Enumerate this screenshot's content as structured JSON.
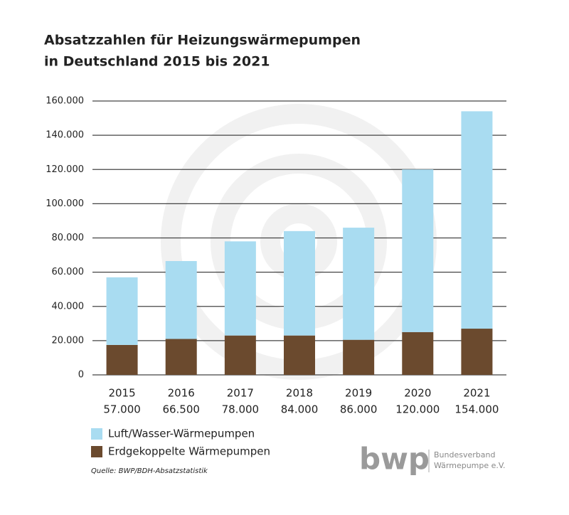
{
  "chart_data": {
    "type": "stacked_bar",
    "title": [
      "Absatzzahlen für Heizungswärmepumpen",
      "in Deutschland 2015 bis 2021"
    ],
    "categories": [
      "2015",
      "2016",
      "2017",
      "2018",
      "2019",
      "2020",
      "2021"
    ],
    "series": [
      {
        "name": "Erdgekoppelte Wärmepumpen",
        "color": "#6b4a2e",
        "values": [
          17500,
          21000,
          23000,
          23000,
          20500,
          25000,
          27000
        ]
      },
      {
        "name": "Luft/Wasser-Wärmepumpen",
        "color": "#a9dcf1",
        "values": [
          39500,
          45500,
          55000,
          61000,
          65500,
          95000,
          127000
        ]
      }
    ],
    "totals": {
      "values": [
        57000,
        66500,
        78000,
        84000,
        86000,
        120000,
        154000
      ],
      "labels": [
        "57.000",
        "66.500",
        "78.000",
        "84.000",
        "86.000",
        "120.000",
        "154.000"
      ]
    },
    "ylim": [
      0,
      160000
    ],
    "yticks": [
      0,
      {
        "value": 20000,
        "label": "20.000"
      },
      {
        "value": 40000,
        "label": "40.000"
      },
      {
        "value": 60000,
        "label": "60.000"
      },
      {
        "value": 80000,
        "label": "80.000"
      },
      {
        "value": 100000,
        "label": "100.000"
      },
      {
        "value": 120000,
        "label": "120.000"
      },
      {
        "value": 140000,
        "label": "140.000"
      },
      {
        "value": 160000,
        "label": "160.000"
      }
    ],
    "grid": true,
    "source": "Quelle: BWP/BDH-Absatzstatistik",
    "logo": {
      "text": "bwp",
      "lines": [
        "Bundesverband",
        "Wärmepumpe e.V."
      ]
    }
  }
}
